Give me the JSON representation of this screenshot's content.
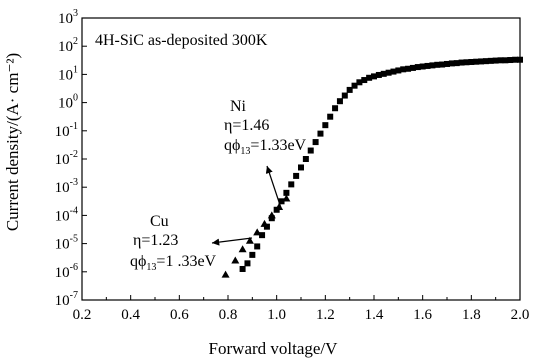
{
  "chart_data": {
    "type": "scatter",
    "title": "",
    "xlabel": "Forward voltage/V",
    "ylabel": "Current density/(A· cm⁻²)",
    "xlim": [
      0.2,
      2.0
    ],
    "ylim_log10": [
      -7,
      3
    ],
    "yscale": "log",
    "grid": false,
    "x_ticks": [
      0.2,
      0.4,
      0.6,
      0.8,
      1.0,
      1.2,
      1.4,
      1.6,
      1.8,
      2.0
    ],
    "x_tick_labels": [
      "0.2",
      "0.4",
      "0.6",
      "0.8",
      "1.0",
      "1.2",
      "1.4",
      "1.6",
      "1.8",
      "2.0"
    ],
    "y_ticks_exp": [
      -7,
      -6,
      -5,
      -4,
      -3,
      -2,
      -1,
      0,
      1,
      2,
      3
    ],
    "y_tick_base": "10",
    "y_tick_exponents": [
      "-7",
      "-6",
      "-5",
      "-4",
      "-3",
      "-2",
      "-1",
      "0",
      "1",
      "2",
      "3"
    ],
    "inset_label": "4H-SiC as-deposited 300K",
    "annotations": [
      {
        "lines": [
          "Ni",
          "η=1.46",
          "qϕ = 1.33eV"
        ],
        "metal": "Ni",
        "eta": "η=1.46",
        "barrier": "qϕ",
        "barrier_sub": "13",
        "barrier_value": "=1.33eV"
      },
      {
        "metal": "Cu",
        "eta": "η=1.23",
        "barrier": "qϕ",
        "barrier_sub": "13",
        "barrier_value": "=1 .33eV"
      }
    ],
    "series": [
      {
        "name": "Ni",
        "marker": "square",
        "x": [
          0.86,
          0.88,
          0.9,
          0.92,
          0.94,
          0.96,
          0.98,
          1.0,
          1.02,
          1.04,
          1.06,
          1.08,
          1.1,
          1.12,
          1.14,
          1.16,
          1.18,
          1.2,
          1.22,
          1.24,
          1.26,
          1.28,
          1.3,
          1.32,
          1.34,
          1.36,
          1.38,
          1.4,
          1.42,
          1.44,
          1.46,
          1.48,
          1.5,
          1.52,
          1.54,
          1.56,
          1.58,
          1.6,
          1.62,
          1.64,
          1.66,
          1.68,
          1.7,
          1.72,
          1.74,
          1.76,
          1.78,
          1.8,
          1.82,
          1.84,
          1.86,
          1.88,
          1.9,
          1.92,
          1.94,
          1.96,
          1.98,
          2.0
        ],
        "log10_y": [
          -5.9,
          -5.7,
          -5.4,
          -5.1,
          -4.7,
          -4.4,
          -4.1,
          -3.8,
          -3.5,
          -3.2,
          -2.9,
          -2.6,
          -2.3,
          -2.0,
          -1.7,
          -1.4,
          -1.1,
          -0.8,
          -0.5,
          -0.2,
          0.05,
          0.25,
          0.45,
          0.6,
          0.72,
          0.8,
          0.88,
          0.93,
          0.98,
          1.02,
          1.06,
          1.1,
          1.14,
          1.18,
          1.2,
          1.23,
          1.26,
          1.28,
          1.3,
          1.32,
          1.34,
          1.35,
          1.37,
          1.39,
          1.4,
          1.42,
          1.43,
          1.44,
          1.45,
          1.46,
          1.47,
          1.48,
          1.49,
          1.5,
          1.5,
          1.51,
          1.52,
          1.52
        ]
      },
      {
        "name": "Cu",
        "marker": "triangle",
        "x": [
          0.79,
          0.83,
          0.86,
          0.89,
          0.92,
          0.95,
          0.98,
          1.01,
          1.04
        ],
        "log10_y": [
          -6.1,
          -5.6,
          -5.2,
          -4.9,
          -4.6,
          -4.3,
          -4.0,
          -3.7,
          -3.4
        ]
      }
    ]
  }
}
